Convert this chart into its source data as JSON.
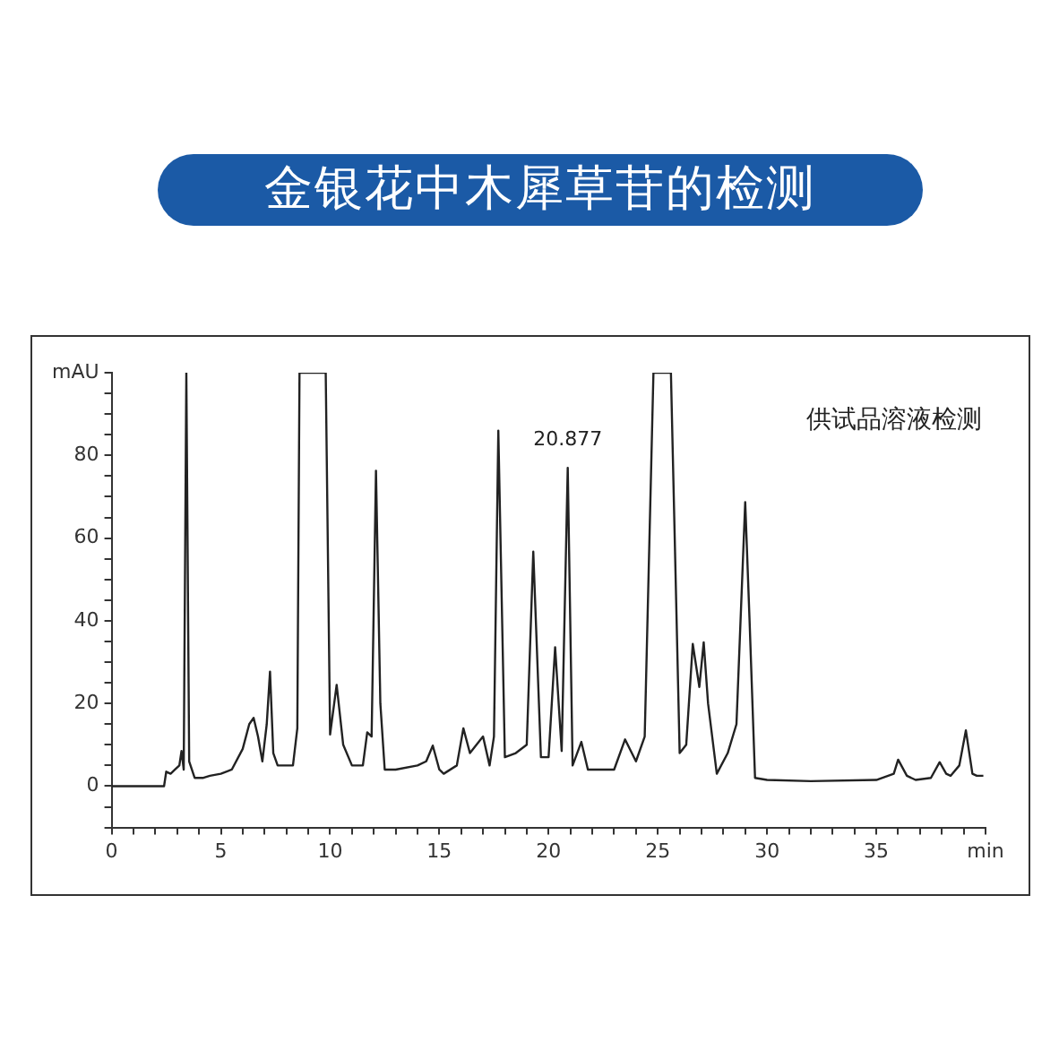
{
  "chart_data": {
    "type": "line",
    "title": "金银花中木犀草苷的检测",
    "x": [
      0,
      2.4,
      2.5,
      2.7,
      2.9,
      3.1,
      3.2,
      3.3,
      3.42,
      3.55,
      3.8,
      4.2,
      4.5,
      5.0,
      5.5,
      6.0,
      6.3,
      6.5,
      6.7,
      6.9,
      7.1,
      7.25,
      7.4,
      7.6,
      8.0,
      8.3,
      8.5,
      8.6,
      9.8,
      10.0,
      10.3,
      10.6,
      11.0,
      11.5,
      11.7,
      11.9,
      12.1,
      12.3,
      12.5,
      13.0,
      14.0,
      14.4,
      14.7,
      15.0,
      15.2,
      15.8,
      16.1,
      16.4,
      16.7,
      17.0,
      17.3,
      17.5,
      17.7,
      18.0,
      18.5,
      19.0,
      19.3,
      19.65,
      20.0,
      20.3,
      20.6,
      20.877,
      21.1,
      21.5,
      21.8,
      22.5,
      23.0,
      23.5,
      24.0,
      24.4,
      24.8,
      25.6,
      26.0,
      26.3,
      26.6,
      26.9,
      27.1,
      27.3,
      27.7,
      28.2,
      28.6,
      29.0,
      29.2,
      29.45,
      30,
      32,
      35,
      35.8,
      36.0,
      36.4,
      36.8,
      37.5,
      37.9,
      38.2,
      38.4,
      38.8,
      39.1,
      39.4,
      39.6,
      39.9
    ],
    "series": [
      {
        "color": "#222222",
        "values": [
          0,
          0,
          3.5,
          3,
          4,
          5,
          8.5,
          4,
          100,
          6,
          2,
          2,
          2.5,
          3,
          4,
          9,
          15,
          16.5,
          12,
          6,
          15,
          27.7,
          8,
          5,
          5,
          5,
          14,
          100,
          100,
          12.5,
          24.5,
          10,
          5,
          5,
          13,
          12,
          76.3,
          20,
          4,
          4,
          5,
          6,
          9.8,
          4,
          3,
          5,
          14,
          8,
          10,
          12,
          5,
          12,
          86,
          7,
          8,
          10,
          56.7,
          7,
          7,
          33.6,
          8.5,
          77,
          5,
          10.7,
          4,
          4,
          4,
          11.3,
          6,
          12,
          100,
          100,
          8,
          10,
          34.4,
          24,
          34.8,
          20,
          3,
          8,
          15,
          68.7,
          40,
          2,
          1.5,
          1.2,
          1.5,
          3,
          6.4,
          2.5,
          1.5,
          2,
          5.8,
          3,
          2.5,
          5,
          13.5,
          3,
          2.5,
          2.5
        ]
      }
    ],
    "xlim": [
      0,
      40
    ],
    "xticks": [
      0,
      {
        "value": 1,
        "label": null
      },
      {
        "value": 2,
        "label": null
      },
      {
        "value": 3,
        "label": null
      },
      {
        "value": 4,
        "label": null
      },
      5,
      {
        "value": 6,
        "label": null
      },
      {
        "value": 7,
        "label": null
      },
      {
        "value": 8,
        "label": null
      },
      {
        "value": 9,
        "label": null
      },
      10,
      {
        "value": 11,
        "label": null
      },
      {
        "value": 12,
        "label": null
      },
      {
        "value": 13,
        "label": null
      },
      {
        "value": 14,
        "label": null
      },
      15,
      {
        "value": 16,
        "label": null
      },
      {
        "value": 17,
        "label": null
      },
      {
        "value": 18,
        "label": null
      },
      {
        "value": 19,
        "label": null
      },
      20,
      {
        "value": 21,
        "label": null
      },
      {
        "value": 22,
        "label": null
      },
      {
        "value": 23,
        "label": null
      },
      {
        "value": 24,
        "label": null
      },
      25,
      {
        "value": 26,
        "label": null
      },
      {
        "value": 27,
        "label": null
      },
      {
        "value": 28,
        "label": null
      },
      {
        "value": 29,
        "label": null
      },
      30,
      {
        "value": 31,
        "label": null
      },
      {
        "value": 32,
        "label": null
      },
      {
        "value": 33,
        "label": null
      },
      {
        "value": 34,
        "label": null
      },
      35,
      {
        "value": 36,
        "label": null
      },
      {
        "value": 37,
        "label": null
      },
      {
        "value": 38,
        "label": null
      },
      {
        "value": 39,
        "label": null
      },
      {
        "value": 40,
        "label": "min"
      }
    ],
    "ylim": [
      -10,
      100
    ],
    "yticks": [
      {
        "value": -10,
        "label": null
      },
      {
        "value": -5,
        "label": null
      },
      0,
      {
        "value": 5,
        "label": null
      },
      {
        "value": 10,
        "label": null
      },
      {
        "value": 15,
        "label": null
      },
      20,
      {
        "value": 25,
        "label": null
      },
      {
        "value": 30,
        "label": null
      },
      {
        "value": 35,
        "label": null
      },
      40,
      {
        "value": 45,
        "label": null
      },
      {
        "value": 50,
        "label": null
      },
      {
        "value": 55,
        "label": null
      },
      60,
      {
        "value": 65,
        "label": null
      },
      {
        "value": 70,
        "label": null
      },
      {
        "value": 75,
        "label": null
      },
      80,
      {
        "value": 85,
        "label": null
      },
      {
        "value": 90,
        "label": null
      },
      {
        "value": 95,
        "label": null
      },
      {
        "value": 100,
        "label": "mAU"
      }
    ],
    "annotations": [
      "供试品溶液检测",
      {
        "text": "20.877",
        "x": 20.877,
        "y": 77
      }
    ],
    "grid": false,
    "legend": false,
    "marker": "none",
    "line_style": "solid"
  }
}
